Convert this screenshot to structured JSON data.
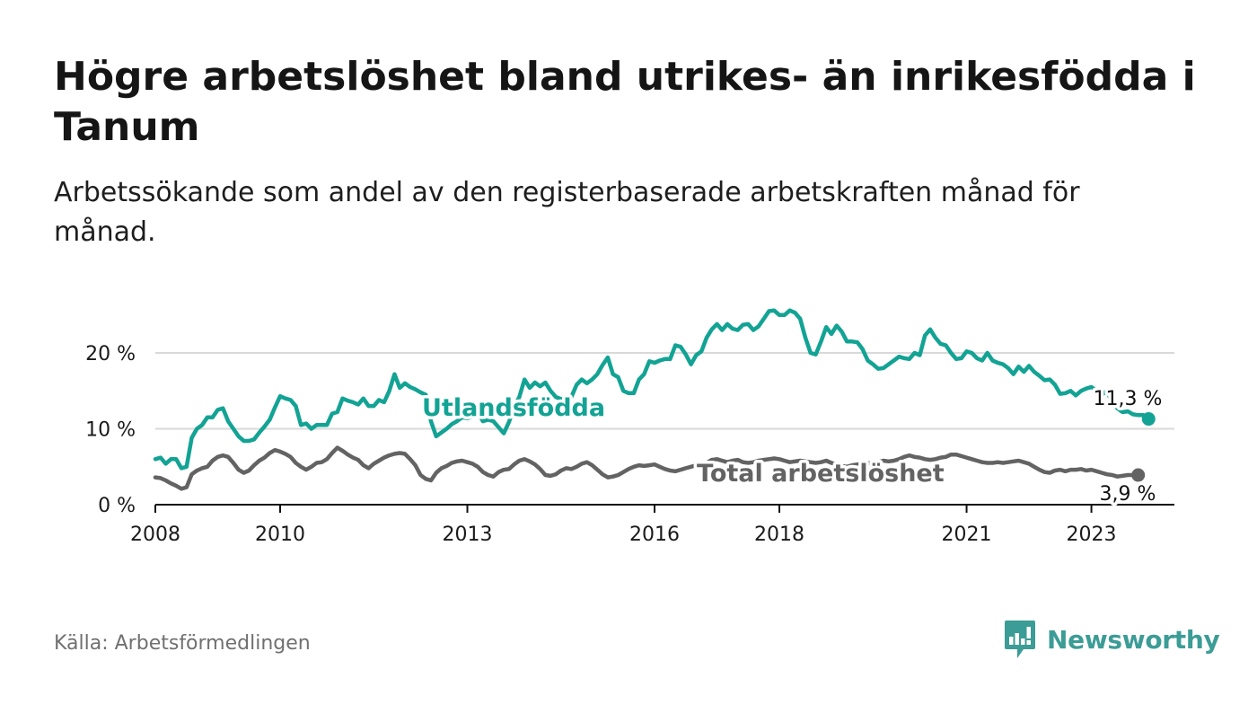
{
  "title": "Högre arbetslöshet bland utrikes- än inrikesfödda i Tanum",
  "subtitle": "Arbetssökande som andel av den registerbaserade arbetskraften månad för månad.",
  "source": "Källa: Arbetsförmedlingen",
  "brand": "Newsworthy",
  "colors": {
    "utlandsfodda": "#13a394",
    "total": "#636363",
    "grid": "#d9d9d9",
    "axis": "#111111",
    "brand": "#3c9c96"
  },
  "chart_data": {
    "type": "line",
    "x_start": 2008.0,
    "x_step": 0.0833333,
    "xlim": [
      2008.0,
      2024.33
    ],
    "ylim": [
      0,
      20
    ],
    "ytick_values": [
      0,
      10,
      20
    ],
    "ytick_labels": [
      "0 %",
      "10 %",
      "20 %"
    ],
    "xtick_values": [
      2008,
      2010,
      2013,
      2016,
      2018,
      2021,
      2023
    ],
    "xtick_labels": [
      "2008",
      "2010",
      "2013",
      "2016",
      "2018",
      "2021",
      "2023"
    ],
    "series": [
      {
        "name": "Utlandsfödda",
        "key": "utlandsfodda",
        "end_label": "11,3 %",
        "values": [
          6.0,
          6.2,
          5.4,
          6.0,
          6.0,
          4.8,
          5.0,
          8.8,
          10.0,
          10.5,
          11.5,
          11.5,
          12.5,
          12.7,
          11.0,
          10.0,
          9.0,
          8.4,
          8.4,
          8.6,
          9.5,
          10.3,
          11.2,
          12.8,
          14.3,
          14.0,
          13.8,
          13.0,
          10.5,
          10.7,
          10.0,
          10.5,
          10.5,
          10.5,
          12.0,
          12.2,
          14.0,
          13.7,
          13.5,
          13.2,
          14.0,
          13.0,
          13.0,
          13.8,
          13.5,
          15.0,
          17.2,
          15.4,
          16.0,
          15.5,
          15.2,
          14.8,
          14.5,
          11.0,
          9.0,
          9.5,
          10.0,
          10.6,
          11.0,
          11.5,
          11.4,
          11.6,
          12.2,
          11.0,
          11.2,
          11.0,
          10.2,
          9.4,
          10.9,
          12.8,
          14.2,
          16.5,
          15.4,
          16.1,
          15.6,
          16.1,
          15.0,
          14.2,
          13.9,
          14.0,
          14.2,
          15.8,
          16.5,
          16.0,
          16.5,
          17.2,
          18.4,
          19.4,
          17.2,
          16.8,
          15.0,
          14.7,
          14.7,
          16.5,
          17.2,
          18.9,
          18.7,
          19.0,
          19.2,
          19.2,
          21.0,
          20.8,
          19.8,
          18.5,
          19.7,
          20.2,
          22.0,
          23.1,
          23.8,
          23.0,
          23.8,
          23.2,
          23.0,
          23.7,
          23.8,
          23.0,
          23.5,
          24.5,
          25.5,
          25.6,
          25.0,
          25.0,
          25.6,
          25.3,
          24.5,
          22.0,
          20.0,
          19.8,
          21.5,
          23.4,
          22.5,
          23.6,
          22.8,
          21.5,
          21.5,
          21.4,
          20.5,
          19.0,
          18.5,
          17.9,
          18.0,
          18.5,
          19.0,
          19.5,
          19.3,
          19.2,
          20.0,
          19.7,
          22.3,
          23.1,
          22.0,
          21.2,
          21.0,
          20.0,
          19.2,
          19.3,
          20.2,
          20.0,
          19.3,
          19.0,
          20.0,
          19.0,
          18.7,
          18.5,
          18.0,
          17.2,
          18.2,
          17.5,
          18.3,
          17.5,
          17.0,
          16.4,
          16.5,
          15.8,
          14.6,
          14.7,
          15.0,
          14.4,
          15.0,
          15.3,
          15.5,
          15.0,
          14.5,
          15.0,
          13.5,
          12.7,
          12.2,
          12.3,
          11.9,
          11.8,
          11.8,
          11.3
        ]
      },
      {
        "name": "Total arbetslöshet",
        "key": "total",
        "end_label": "3,9 %",
        "values": [
          3.6,
          3.5,
          3.2,
          2.8,
          2.5,
          2.1,
          2.3,
          4.0,
          4.5,
          4.8,
          5.0,
          5.8,
          6.3,
          6.5,
          6.3,
          5.5,
          4.6,
          4.2,
          4.5,
          5.2,
          5.8,
          6.2,
          6.8,
          7.2,
          7.0,
          6.7,
          6.3,
          5.5,
          5.0,
          4.6,
          5.0,
          5.5,
          5.6,
          6.0,
          6.8,
          7.5,
          7.1,
          6.6,
          6.2,
          5.9,
          5.2,
          4.8,
          5.4,
          5.8,
          6.2,
          6.5,
          6.7,
          6.8,
          6.7,
          6.0,
          5.2,
          3.9,
          3.4,
          3.2,
          4.2,
          4.8,
          5.1,
          5.5,
          5.7,
          5.8,
          5.6,
          5.4,
          5.0,
          4.3,
          3.9,
          3.7,
          4.3,
          4.6,
          4.7,
          5.3,
          5.8,
          6.0,
          5.7,
          5.3,
          4.7,
          3.9,
          3.8,
          4.0,
          4.5,
          4.8,
          4.7,
          5.0,
          5.4,
          5.6,
          5.2,
          4.6,
          4.0,
          3.6,
          3.7,
          3.9,
          4.3,
          4.7,
          5.0,
          5.2,
          5.1,
          5.2,
          5.3,
          5.0,
          4.7,
          4.5,
          4.4,
          4.6,
          4.8,
          5.0,
          5.2,
          5.3,
          5.5,
          5.9,
          6.0,
          5.8,
          5.6,
          5.8,
          5.9,
          5.6,
          5.5,
          5.6,
          5.8,
          5.9,
          6.0,
          6.1,
          6.0,
          5.8,
          5.6,
          5.7,
          5.8,
          5.7,
          5.6,
          5.5,
          5.6,
          5.8,
          5.5,
          5.3,
          5.1,
          5.0,
          5.2,
          5.3,
          5.4,
          5.5,
          5.4,
          5.6,
          5.8,
          5.7,
          5.8,
          6.0,
          6.3,
          6.5,
          6.3,
          6.2,
          6.0,
          5.9,
          6.0,
          6.2,
          6.3,
          6.6,
          6.6,
          6.4,
          6.2,
          6.0,
          5.8,
          5.6,
          5.5,
          5.5,
          5.6,
          5.5,
          5.6,
          5.7,
          5.8,
          5.6,
          5.4,
          5.0,
          4.6,
          4.3,
          4.2,
          4.5,
          4.6,
          4.4,
          4.6,
          4.6,
          4.7,
          4.5,
          4.6,
          4.4,
          4.2,
          4.0,
          3.9,
          3.7,
          3.8,
          3.9,
          3.9,
          3.9
        ]
      }
    ]
  }
}
